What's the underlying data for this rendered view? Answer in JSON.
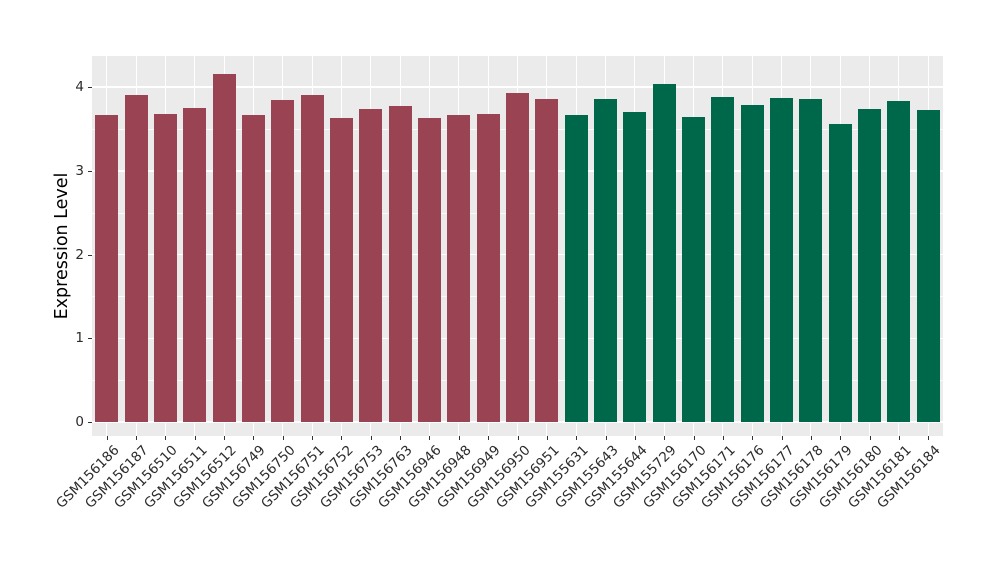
{
  "figure": {
    "background": "#FFFFFF"
  },
  "colors": {
    "panel_background": "#EBEBEB",
    "grid": "#FFFFFF",
    "bar_maroon": "#9A4453",
    "bar_green": "#00684A",
    "axis_text": "#2b2b2b",
    "tick_mark": "#333333"
  },
  "chart_data": {
    "type": "bar",
    "title": "",
    "xlabel": "",
    "ylabel": "Expression Level",
    "ylim": [
      -0.17,
      4.37
    ],
    "yticks": [
      0,
      1,
      2,
      3,
      4
    ],
    "minor_yticks": [
      0.5,
      1.5,
      2.5,
      3.5
    ],
    "grid": true,
    "legend_position": "none",
    "categories": [
      "GSM156186",
      "GSM156187",
      "GSM156510",
      "GSM156511",
      "GSM156512",
      "GSM156749",
      "GSM156750",
      "GSM156751",
      "GSM156752",
      "GSM156753",
      "GSM156763",
      "GSM156946",
      "GSM156948",
      "GSM156949",
      "GSM156950",
      "GSM156951",
      "GSM155631",
      "GSM155643",
      "GSM155644",
      "GSM155729",
      "GSM156170",
      "GSM156171",
      "GSM156176",
      "GSM156177",
      "GSM156178",
      "GSM156179",
      "GSM156180",
      "GSM156181",
      "GSM156184"
    ],
    "values": [
      3.67,
      3.9,
      3.68,
      3.75,
      4.15,
      3.66,
      3.84,
      3.91,
      3.63,
      3.74,
      3.77,
      3.63,
      3.67,
      3.68,
      3.93,
      3.86,
      3.67,
      3.86,
      3.7,
      4.04,
      3.64,
      3.88,
      3.79,
      3.87,
      3.86,
      3.56,
      3.74,
      3.83,
      3.72
    ],
    "bar_colors": [
      "#9A4453",
      "#9A4453",
      "#9A4453",
      "#9A4453",
      "#9A4453",
      "#9A4453",
      "#9A4453",
      "#9A4453",
      "#9A4453",
      "#9A4453",
      "#9A4453",
      "#9A4453",
      "#9A4453",
      "#9A4453",
      "#9A4453",
      "#9A4453",
      "#00684A",
      "#00684A",
      "#00684A",
      "#00684A",
      "#00684A",
      "#00684A",
      "#00684A",
      "#00684A",
      "#00684A",
      "#00684A",
      "#00684A",
      "#00684A",
      "#00684A"
    ],
    "color_groups": [
      {
        "color": "#9A4453",
        "first_category": "GSM156186",
        "last_category": "GSM156951",
        "count": 16
      },
      {
        "color": "#00684A",
        "first_category": "GSM155631",
        "last_category": "GSM156184",
        "count": 13
      }
    ]
  }
}
